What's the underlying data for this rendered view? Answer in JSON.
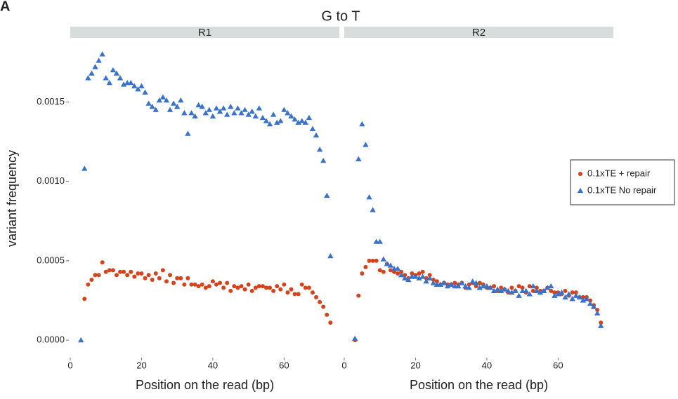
{
  "chart_data": {
    "type": "scatter",
    "panel_label": "A",
    "title": "G to T",
    "x_label": "Position on the read (bp)",
    "y_label": "variant frequency",
    "xlim": [
      0,
      75.5
    ],
    "xticks": [
      0,
      20,
      40,
      60
    ],
    "ylim": [
      -0.00011,
      0.00189
    ],
    "yticks": [
      {
        "value": 0,
        "label": "0.0000"
      },
      {
        "value": 0.0005,
        "label": "0.0005"
      },
      {
        "value": 0.001,
        "label": "0.0010"
      },
      {
        "value": 0.0015,
        "label": "0.0015"
      }
    ],
    "grid": false,
    "legend": "right",
    "panels": [
      {
        "strip": "R1",
        "x": [
          3,
          4,
          5,
          6,
          7,
          8,
          9,
          10,
          11,
          12,
          13,
          14,
          15,
          16,
          17,
          18,
          19,
          20,
          21,
          22,
          23,
          24,
          25,
          26,
          27,
          28,
          29,
          30,
          31,
          32,
          33,
          34,
          35,
          36,
          37,
          38,
          39,
          40,
          41,
          42,
          43,
          44,
          45,
          46,
          47,
          48,
          49,
          50,
          51,
          52,
          53,
          54,
          55,
          56,
          57,
          58,
          59,
          60,
          61,
          62,
          63,
          64,
          65,
          66,
          67,
          68,
          69,
          70,
          71,
          72,
          73
        ]
      },
      {
        "strip": "R2",
        "x": [
          3,
          4,
          5,
          6,
          7,
          8,
          9,
          10,
          11,
          12,
          13,
          14,
          15,
          16,
          17,
          18,
          19,
          20,
          21,
          22,
          23,
          24,
          25,
          26,
          27,
          28,
          29,
          30,
          31,
          32,
          33,
          34,
          35,
          36,
          37,
          38,
          39,
          40,
          41,
          42,
          43,
          44,
          45,
          46,
          47,
          48,
          49,
          50,
          51,
          52,
          53,
          54,
          55,
          56,
          57,
          58,
          59,
          60,
          61,
          62,
          63,
          64,
          65,
          66,
          67,
          68,
          69,
          70,
          71,
          72
        ]
      }
    ],
    "series": [
      {
        "name": "0.1xTE + repair",
        "color": "#d3441c",
        "marker": "circle",
        "values": [
          [
            null,
            0.00026,
            0.00035,
            0.00038,
            0.00041,
            0.00041,
            0.00049,
            0.00043,
            0.00044,
            0.00044,
            0.00041,
            0.00043,
            0.00043,
            0.00041,
            0.00043,
            0.0004,
            0.00042,
            0.00042,
            0.00039,
            0.00041,
            0.00038,
            0.00042,
            0.00039,
            0.00044,
            0.00037,
            0.00041,
            0.00036,
            0.00039,
            0.00039,
            0.00035,
            0.00039,
            0.00035,
            0.00035,
            0.00034,
            0.00035,
            0.00033,
            0.00034,
            0.00037,
            0.00035,
            0.00036,
            0.00033,
            0.00036,
            0.00031,
            0.00034,
            0.00033,
            0.00034,
            0.00032,
            0.00035,
            0.00031,
            0.00033,
            0.00034,
            0.00034,
            0.00033,
            0.00033,
            0.00031,
            0.00034,
            0.00032,
            0.00035,
            0.0003,
            0.00032,
            0.00029,
            0.00029,
            0.00035,
            0.00033,
            0.00033,
            0.0003,
            0.00027,
            0.00024,
            0.00021,
            0.00016,
            0.00011
          ],
          [
            0,
            0.00028,
            0.00042,
            0.00046,
            0.0005,
            0.0005,
            0.0005,
            0.00044,
            0.00043,
            0.00048,
            0.00044,
            0.00043,
            0.00042,
            0.00043,
            0.00041,
            0.00039,
            0.00042,
            0.00041,
            0.00042,
            0.00043,
            0.00039,
            0.00041,
            0.00038,
            0.00037,
            0.00035,
            0.00036,
            0.00035,
            0.00035,
            0.00036,
            0.00035,
            0.00036,
            0.00033,
            0.00035,
            0.00036,
            0.00034,
            0.00036,
            0.00035,
            0.00033,
            0.00033,
            0.00034,
            0.00031,
            0.00033,
            0.00032,
            0.0003,
            0.00033,
            0.00031,
            0.00034,
            0.00033,
            0.0003,
            0.00034,
            0.00031,
            0.00033,
            0.00031,
            0.00031,
            0.00033,
            0.00031,
            0.0003,
            0.0003,
            0.00029,
            0.00031,
            0.00028,
            0.0003,
            0.0003,
            0.00027,
            0.00027,
            0.00027,
            0.00025,
            0.00022,
            0.00019,
            0.00011
          ]
        ]
      },
      {
        "name": "0.1xTE No repair",
        "color": "#3a72c9",
        "marker": "triangle",
        "values": [
          [
            0,
            0.00108,
            0.00165,
            0.00168,
            0.00172,
            0.00176,
            0.0018,
            0.00165,
            0.00162,
            0.0017,
            0.00168,
            0.00165,
            0.00161,
            0.00162,
            0.00162,
            0.0016,
            0.00158,
            0.0016,
            0.00156,
            0.00149,
            0.00147,
            0.00145,
            0.00151,
            0.00153,
            0.00151,
            0.00145,
            0.00149,
            0.00147,
            0.00151,
            0.00143,
            0.0013,
            0.00143,
            0.00141,
            0.00148,
            0.00147,
            0.00143,
            0.00145,
            0.00141,
            0.00146,
            0.00144,
            0.00146,
            0.00142,
            0.00147,
            0.00143,
            0.00146,
            0.00143,
            0.00145,
            0.00142,
            0.00144,
            0.00141,
            0.00146,
            0.0014,
            0.00138,
            0.00136,
            0.00142,
            0.00137,
            0.00138,
            0.00145,
            0.00143,
            0.00141,
            0.00139,
            0.00137,
            0.00138,
            0.00137,
            0.0014,
            0.00133,
            0.00129,
            0.0012,
            0.00113,
            0.00091,
            0.00053
          ],
          [
            1e-05,
            0.00114,
            0.00136,
            0.00123,
            0.0009,
            0.00082,
            0.00062,
            0.00062,
            0.00051,
            0.00048,
            0.00047,
            0.00045,
            0.00045,
            0.00041,
            0.00039,
            0.00038,
            0.0004,
            0.0004,
            0.00039,
            0.0004,
            0.00037,
            0.00039,
            0.00036,
            0.00035,
            0.00035,
            0.00036,
            0.00034,
            0.00035,
            0.00034,
            0.00034,
            0.00036,
            0.00034,
            0.00033,
            0.00037,
            0.00036,
            0.00033,
            0.00034,
            0.00034,
            0.00033,
            0.00031,
            0.00032,
            0.00031,
            0.00032,
            0.00031,
            0.0003,
            0.00031,
            0.00028,
            0.00031,
            0.00031,
            0.00029,
            0.00034,
            0.00031,
            0.0003,
            0.00031,
            0.00033,
            0.00034,
            0.00028,
            0.00029,
            0.0003,
            0.00027,
            0.00029,
            0.00026,
            0.00028,
            0.00027,
            0.00025,
            0.00026,
            0.00023,
            0.00021,
            0.00017,
            9e-05
          ]
        ]
      }
    ]
  }
}
